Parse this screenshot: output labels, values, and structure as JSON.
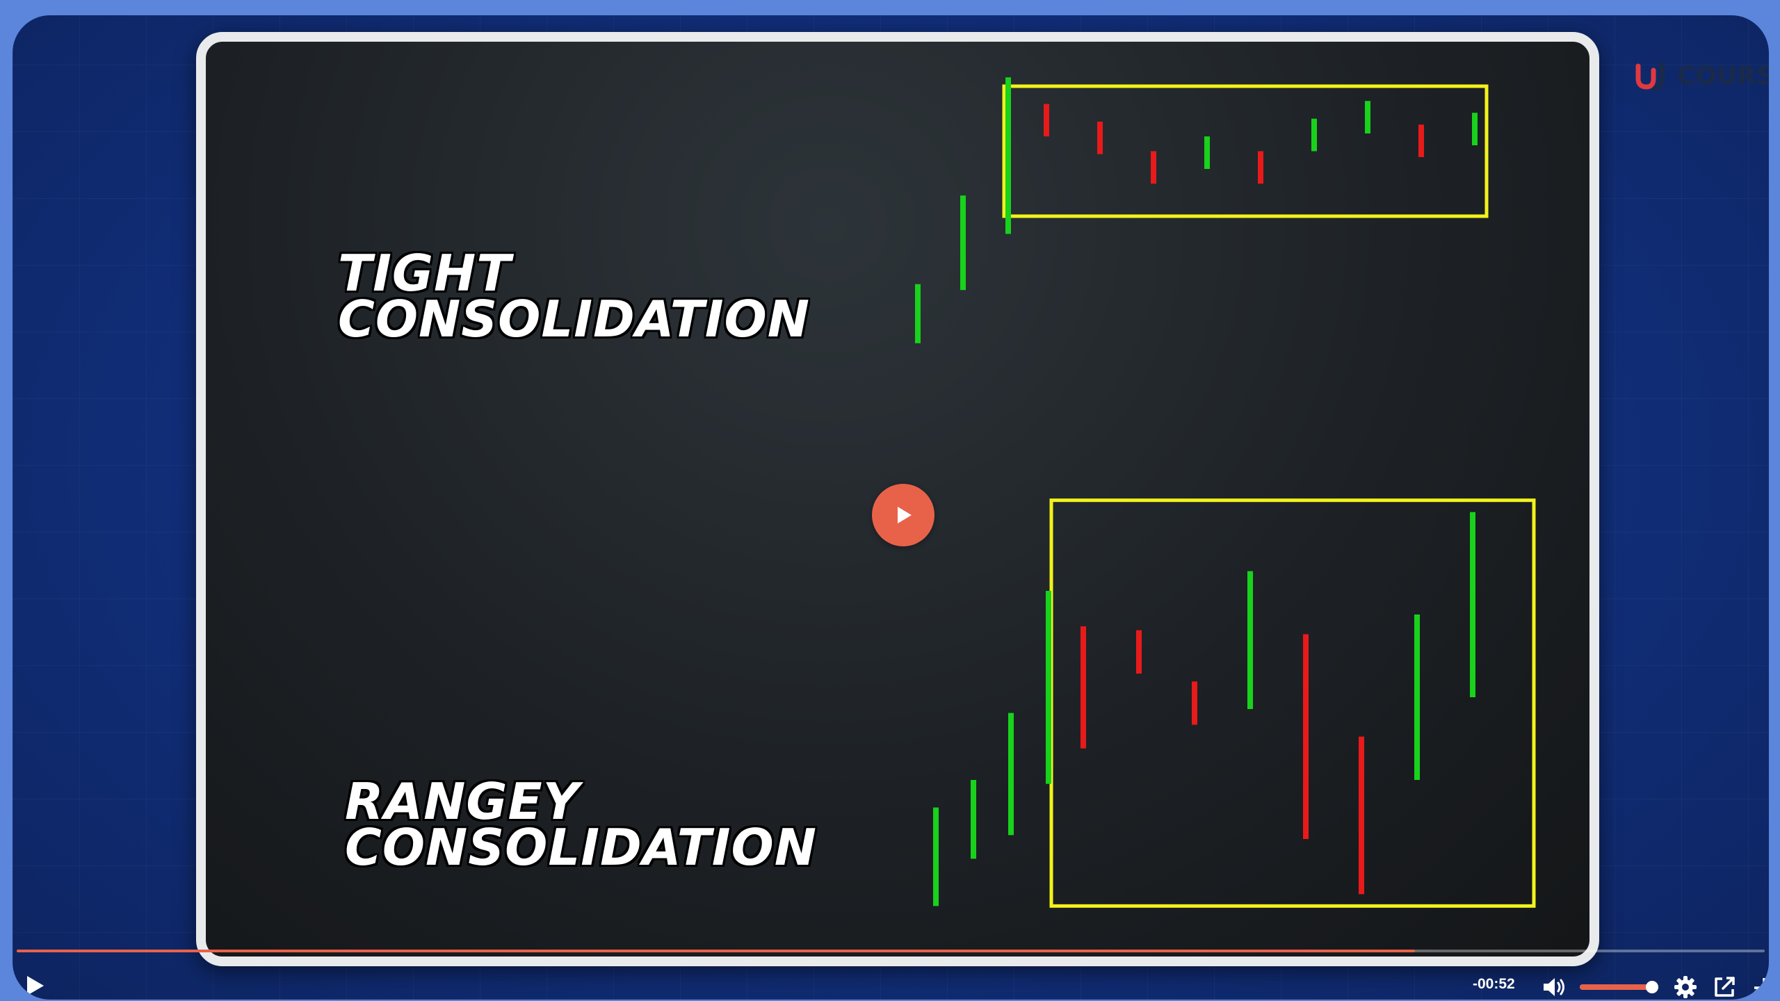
{
  "slide": {
    "heading_top": [
      "TIGHT",
      "CONSOLIDATION"
    ],
    "heading_bottom": [
      "RANGEY",
      "CONSOLIDATION"
    ]
  },
  "brand": {
    "text": "COURSE",
    "logo_icon": "wj-logo-icon",
    "logo_color": "#e0393e"
  },
  "player": {
    "time_remaining": "-00:52",
    "progress_fraction": 0.8,
    "volume_fraction": 1.0,
    "accent_color": "#e8624a",
    "icons": [
      "play-icon",
      "volume-icon",
      "gear-icon",
      "popout-icon",
      "exit-fullscreen-icon"
    ]
  },
  "chart_data": {
    "type": "bar",
    "colors": {
      "up": "#18d21c",
      "down": "#e81a1a",
      "box": "#f2f21c"
    },
    "tight": {
      "trend_bars": [
        {
          "dir": "up",
          "low": 25,
          "high": 45
        },
        {
          "dir": "up",
          "low": 43,
          "high": 75
        },
        {
          "dir": "up",
          "low": 62,
          "high": 115
        }
      ],
      "range_bars": [
        {
          "dir": "down",
          "low": 95,
          "high": 106
        },
        {
          "dir": "down",
          "low": 89,
          "high": 100
        },
        {
          "dir": "down",
          "low": 79,
          "high": 90
        },
        {
          "dir": "up",
          "low": 84,
          "high": 95
        },
        {
          "dir": "down",
          "low": 79,
          "high": 90
        },
        {
          "dir": "up",
          "low": 90,
          "high": 101
        },
        {
          "dir": "up",
          "low": 96,
          "high": 107
        },
        {
          "dir": "down",
          "low": 88,
          "high": 99
        },
        {
          "dir": "up",
          "low": 92,
          "high": 103
        }
      ],
      "box": {
        "low": 68,
        "high": 112
      }
    },
    "rangey": {
      "trend_bars": [
        {
          "dir": "up",
          "low": 10,
          "high": 35
        },
        {
          "dir": "up",
          "low": 22,
          "high": 42
        },
        {
          "dir": "up",
          "low": 28,
          "high": 59
        },
        {
          "dir": "up",
          "low": 41,
          "high": 90
        }
      ],
      "range_bars": [
        {
          "dir": "down",
          "low": 50,
          "high": 81
        },
        {
          "dir": "down",
          "low": 69,
          "high": 80
        },
        {
          "dir": "down",
          "low": 56,
          "high": 67
        },
        {
          "dir": "up",
          "low": 60,
          "high": 95
        },
        {
          "dir": "down",
          "low": 27,
          "high": 79
        },
        {
          "dir": "down",
          "low": 13,
          "high": 53
        },
        {
          "dir": "up",
          "low": 42,
          "high": 84
        },
        {
          "dir": "up",
          "low": 63,
          "high": 110
        }
      ],
      "box": {
        "low": 10,
        "high": 113
      }
    }
  }
}
